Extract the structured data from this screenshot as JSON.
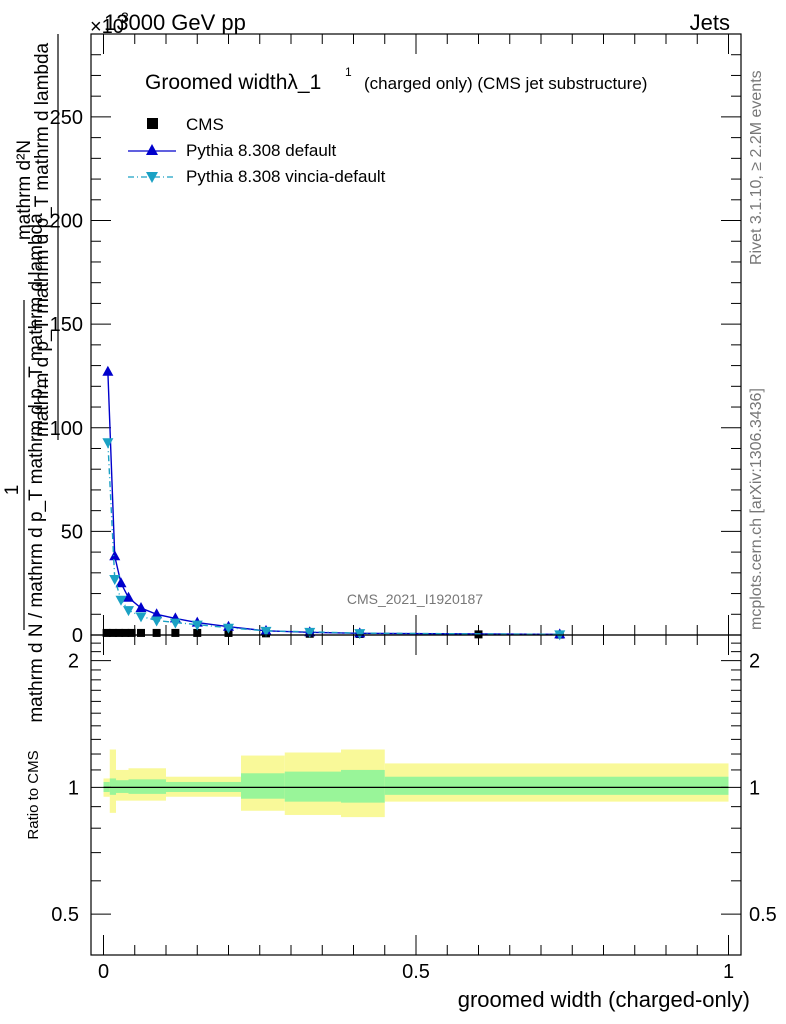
{
  "header": {
    "beam_label": "13000 GeV pp",
    "exponent_prefix": "×10",
    "exponent": "3",
    "process_label": "Jets"
  },
  "side": {
    "rivet_label": "Rivet 3.1.10, ≥ 2.2M events",
    "mcplots_label": "mcplots.cern.ch [arXiv:1306.3436]"
  },
  "chart_data": [
    {
      "type": "line",
      "title": "Groomed widthλ_1",
      "title_superscript": "1",
      "title_suffix": "(charged only) (CMS jet substructure)",
      "ylabel_numerator": "mathrm d²N",
      "ylabel_denominator": "mathrm d p_T mathrm d p_T mathrm d lambda",
      "ylabel_full": "1 / (mathrm d N / mathrm d p_T) · mathrm d²N / (mathrm d p_T mathrm d lambda)",
      "ylabel_one": "1",
      "ylabel_bottom": "mathrm d N / mathrm d p_T mathrm d p_T mathrm d lambda",
      "xlabel": "groomed width (charged-only)",
      "analysis_label": "CMS_2021_I1920187",
      "xlim": [
        -0.02,
        1.02
      ],
      "ylim": [
        0,
        290
      ],
      "y_scale_note": "×10^3",
      "y_ticks": [
        0,
        50,
        100,
        150,
        200,
        250
      ],
      "legend": {
        "position": "top-left",
        "entries": [
          "CMS",
          "Pythia 8.308 default",
          "Pythia 8.308 vincia-default"
        ]
      },
      "series": [
        {
          "name": "CMS",
          "color": "#000000",
          "marker": "square",
          "x": [
            0.005,
            0.015,
            0.025,
            0.035,
            0.045,
            0.06,
            0.085,
            0.115,
            0.15,
            0.2,
            0.26,
            0.33,
            0.41,
            0.6,
            0.73
          ],
          "y": [
            1.0,
            1.0,
            1.0,
            1.0,
            1.0,
            1.0,
            1.0,
            1.0,
            1.0,
            1.0,
            0.8,
            0.6,
            0.5,
            0.3,
            0.2
          ]
        },
        {
          "name": "Pythia 8.308 default",
          "color": "#0000cc",
          "marker": "triangle-up",
          "x": [
            0.007,
            0.018,
            0.028,
            0.04,
            0.06,
            0.085,
            0.115,
            0.15,
            0.2,
            0.26,
            0.33,
            0.41,
            0.73
          ],
          "y": [
            127,
            38,
            25,
            18,
            13,
            10,
            8,
            6,
            4,
            2,
            1.3,
            0.8,
            0.3
          ]
        },
        {
          "name": "Pythia 8.308 vincia-default",
          "color": "#1aa1c4",
          "marker": "triangle-down",
          "x": [
            0.007,
            0.018,
            0.028,
            0.04,
            0.06,
            0.085,
            0.115,
            0.15,
            0.2,
            0.26,
            0.33,
            0.41,
            0.73
          ],
          "y": [
            93,
            27,
            17,
            12,
            9,
            7,
            6,
            5,
            3.5,
            2,
            1.5,
            0.9,
            0.3
          ]
        }
      ]
    },
    {
      "type": "area",
      "ylabel": "Ratio to CMS",
      "xlim": [
        -0.02,
        1.02
      ],
      "ylim": [
        0.4,
        2.3
      ],
      "y_scale": "log",
      "y_tick_labels": [
        "0.5",
        "1",
        "2"
      ],
      "x_tick_labels": [
        "0",
        "0.5",
        "1"
      ],
      "reference_line": 1.0,
      "bins": [
        {
          "x0": 0.0,
          "x1": 0.01,
          "inner": [
            0.975,
            1.03
          ],
          "outer": [
            0.95,
            1.05
          ]
        },
        {
          "x0": 0.01,
          "x1": 0.02,
          "inner": [
            0.96,
            1.05
          ],
          "outer": [
            0.87,
            1.23
          ]
        },
        {
          "x0": 0.02,
          "x1": 0.04,
          "inner": [
            0.97,
            1.04
          ],
          "outer": [
            0.93,
            1.1
          ]
        },
        {
          "x0": 0.04,
          "x1": 0.1,
          "inner": [
            0.965,
            1.045
          ],
          "outer": [
            0.93,
            1.11
          ]
        },
        {
          "x0": 0.1,
          "x1": 0.22,
          "inner": [
            0.975,
            1.03
          ],
          "outer": [
            0.95,
            1.06
          ]
        },
        {
          "x0": 0.22,
          "x1": 0.29,
          "inner": [
            0.94,
            1.08
          ],
          "outer": [
            0.88,
            1.19
          ]
        },
        {
          "x0": 0.29,
          "x1": 0.38,
          "inner": [
            0.925,
            1.09
          ],
          "outer": [
            0.86,
            1.21
          ]
        },
        {
          "x0": 0.38,
          "x1": 0.45,
          "inner": [
            0.92,
            1.1
          ],
          "outer": [
            0.85,
            1.23
          ]
        },
        {
          "x0": 0.45,
          "x1": 1.0,
          "inner": [
            0.96,
            1.06
          ],
          "outer": [
            0.925,
            1.14
          ]
        }
      ],
      "band_colors": {
        "inner": "#99f599",
        "outer": "#f9f999"
      }
    }
  ]
}
